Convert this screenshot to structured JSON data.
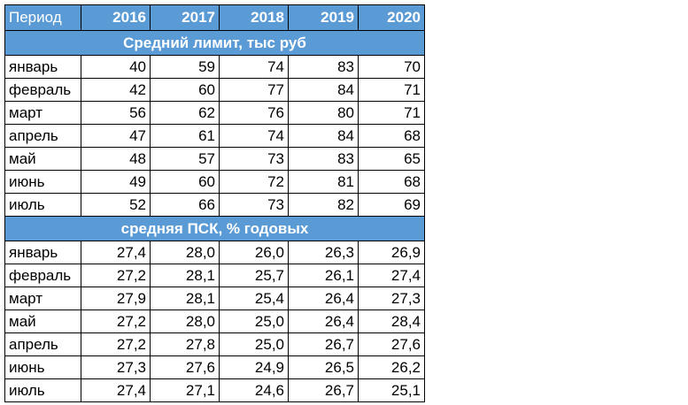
{
  "header": {
    "period_label": "Период",
    "years": [
      "2016",
      "2017",
      "2018",
      "2019",
      "2020"
    ]
  },
  "sections": [
    {
      "title": "Средний лимит, тыс руб",
      "rows": [
        {
          "month": "январь",
          "values": [
            "40",
            "59",
            "74",
            "83",
            "70"
          ]
        },
        {
          "month": "февраль",
          "values": [
            "42",
            "60",
            "77",
            "84",
            "71"
          ]
        },
        {
          "month": "март",
          "values": [
            "56",
            "62",
            "76",
            "80",
            "71"
          ]
        },
        {
          "month": "апрель",
          "values": [
            "47",
            "61",
            "74",
            "84",
            "68"
          ]
        },
        {
          "month": "май",
          "values": [
            "48",
            "57",
            "73",
            "83",
            "65"
          ]
        },
        {
          "month": "июнь",
          "values": [
            "49",
            "60",
            "72",
            "81",
            "68"
          ]
        },
        {
          "month": "июль",
          "values": [
            "52",
            "66",
            "73",
            "82",
            "69"
          ]
        }
      ]
    },
    {
      "title": "средняя ПСК, % годовых",
      "rows": [
        {
          "month": "январь",
          "values": [
            "27,4",
            "28,0",
            "26,0",
            "26,3",
            "26,9"
          ]
        },
        {
          "month": "февраль",
          "values": [
            "27,2",
            "28,1",
            "25,7",
            "26,1",
            "27,4"
          ]
        },
        {
          "month": "март",
          "values": [
            "27,9",
            "28,1",
            "25,4",
            "26,4",
            "27,3"
          ]
        },
        {
          "month": "май",
          "values": [
            "27,2",
            "28,0",
            "25,0",
            "26,4",
            "28,4"
          ]
        },
        {
          "month": "апрель",
          "values": [
            "27,2",
            "27,8",
            "25,0",
            "26,7",
            "27,6"
          ]
        },
        {
          "month": "июнь",
          "values": [
            "27,3",
            "27,6",
            "24,9",
            "26,5",
            "26,2"
          ]
        },
        {
          "month": "июль",
          "values": [
            "27,4",
            "27,1",
            "24,6",
            "26,7",
            "25,1"
          ]
        }
      ]
    }
  ],
  "colors": {
    "header_bg": "#5b9bd5",
    "header_text": "#ffffff",
    "border": "#000000"
  }
}
